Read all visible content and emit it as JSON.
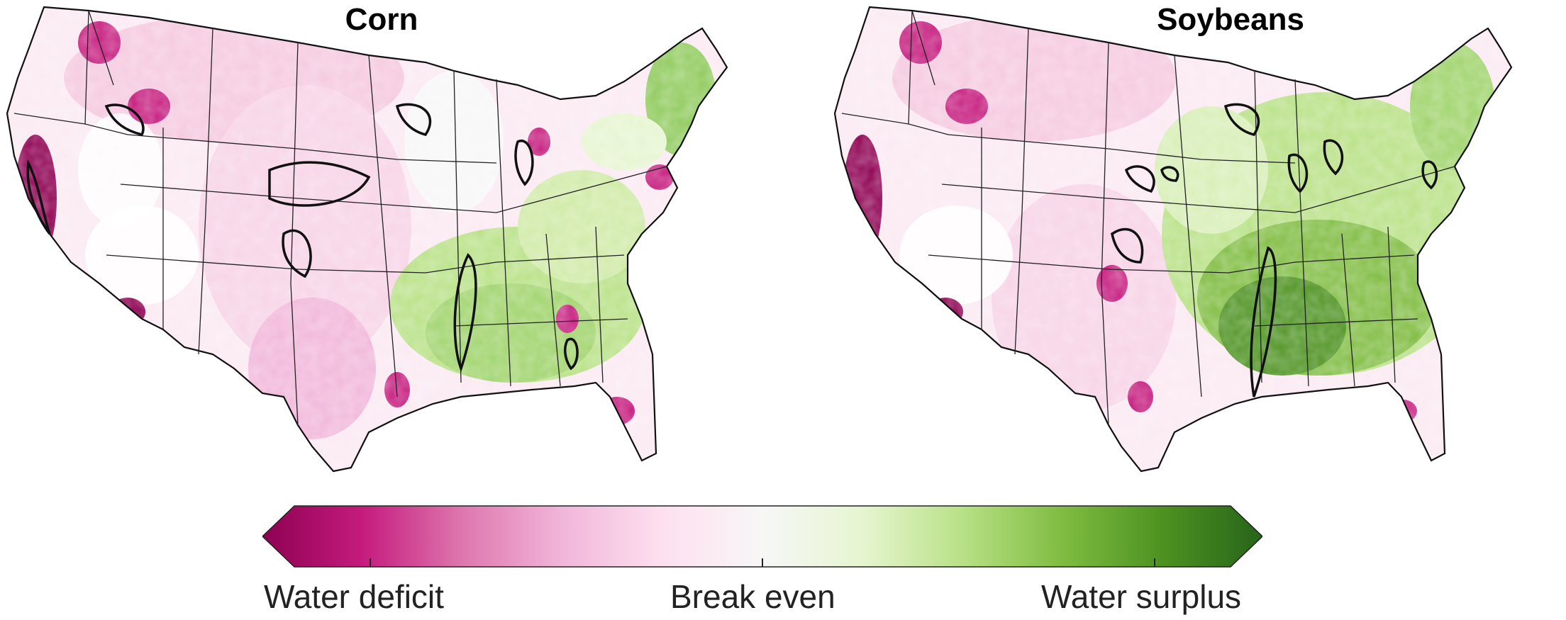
{
  "maps": [
    {
      "title": "Corn",
      "id": "corn"
    },
    {
      "title": "Soybeans",
      "id": "soy"
    }
  ],
  "legend": {
    "labels": {
      "deficit": "Water deficit",
      "even": "Break even",
      "surplus": "Water surplus"
    },
    "colors": [
      "#8e0152",
      "#c51b7d",
      "#de77ae",
      "#f1b6da",
      "#fde0ef",
      "#f7f7f7",
      "#e6f5d0",
      "#b8e186",
      "#7fbc41",
      "#4d9221",
      "#276419"
    ]
  },
  "colors": {
    "deficit": "#8e0152",
    "deficit_light": "#f4c6de",
    "surplus": "#276419",
    "surplus_light": "#b8e186",
    "outline": "#111111"
  }
}
